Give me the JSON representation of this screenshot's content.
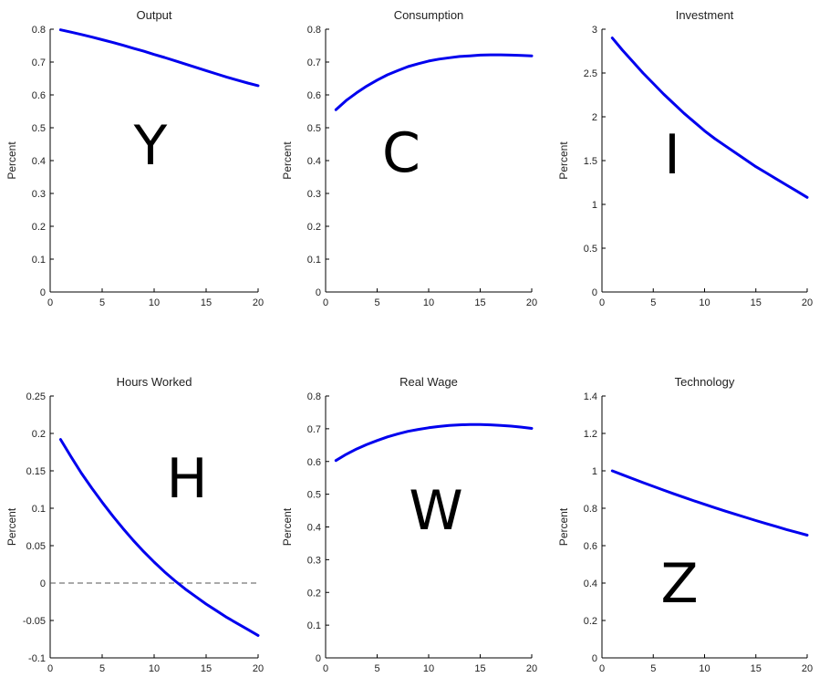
{
  "chart_data": [
    {
      "type": "line",
      "title": "Output",
      "ylabel": "Percent",
      "big_letter": "Y",
      "xlim": [
        0,
        20
      ],
      "ylim": [
        0,
        0.8
      ],
      "xticks": [
        "0",
        "5",
        "10",
        "15",
        "20"
      ],
      "yticks": [
        "0",
        "0.1",
        "0.2",
        "0.3",
        "0.4",
        "0.5",
        "0.6",
        "0.7",
        "0.8"
      ],
      "line_color": "#0000ee",
      "x": [
        1,
        2,
        3,
        4,
        5,
        6,
        7,
        8,
        9,
        10,
        11,
        12,
        13,
        14,
        15,
        16,
        17,
        18,
        19,
        20
      ],
      "y": [
        0.798,
        0.791,
        0.784,
        0.776,
        0.768,
        0.76,
        0.751,
        0.742,
        0.733,
        0.723,
        0.714,
        0.704,
        0.694,
        0.684,
        0.674,
        0.664,
        0.654,
        0.645,
        0.636,
        0.628
      ]
    },
    {
      "type": "line",
      "title": "Consumption",
      "ylabel": "Percent",
      "big_letter": "C",
      "xlim": [
        0,
        20
      ],
      "ylim": [
        0,
        0.8
      ],
      "xticks": [
        "0",
        "5",
        "10",
        "15",
        "20"
      ],
      "yticks": [
        "0",
        "0.1",
        "0.2",
        "0.3",
        "0.4",
        "0.5",
        "0.6",
        "0.7",
        "0.8"
      ],
      "line_color": "#0000ee",
      "x": [
        1,
        2,
        3,
        4,
        5,
        6,
        7,
        8,
        9,
        10,
        11,
        12,
        13,
        14,
        15,
        16,
        17,
        18,
        19,
        20
      ],
      "y": [
        0.555,
        0.583,
        0.606,
        0.627,
        0.645,
        0.661,
        0.674,
        0.686,
        0.695,
        0.703,
        0.709,
        0.713,
        0.717,
        0.719,
        0.721,
        0.722,
        0.722,
        0.721,
        0.72,
        0.719
      ]
    },
    {
      "type": "line",
      "title": "Investment",
      "ylabel": "Percent",
      "big_letter": "I",
      "xlim": [
        0,
        20
      ],
      "ylim": [
        0,
        3
      ],
      "xticks": [
        "0",
        "5",
        "10",
        "15",
        "20"
      ],
      "yticks": [
        "0",
        "0.5",
        "1",
        "1.5",
        "2",
        "2.5",
        "3"
      ],
      "line_color": "#0000ee",
      "x": [
        1,
        2,
        3,
        4,
        5,
        6,
        7,
        8,
        9,
        10,
        11,
        12,
        13,
        14,
        15,
        16,
        17,
        18,
        19,
        20
      ],
      "y": [
        2.9,
        2.76,
        2.63,
        2.5,
        2.38,
        2.26,
        2.15,
        2.04,
        1.94,
        1.84,
        1.75,
        1.67,
        1.59,
        1.51,
        1.43,
        1.36,
        1.29,
        1.22,
        1.15,
        1.08
      ]
    },
    {
      "type": "line",
      "title": "Hours Worked",
      "ylabel": "Percent",
      "big_letter": "H",
      "xlim": [
        0,
        20
      ],
      "ylim": [
        -0.1,
        0.25
      ],
      "xticks": [
        "0",
        "5",
        "10",
        "15",
        "20"
      ],
      "yticks": [
        "-0.1",
        "-0.05",
        "0",
        "0.05",
        "0.1",
        "0.15",
        "0.2",
        "0.25"
      ],
      "line_color": "#0000ee",
      "zero_line": true,
      "x": [
        1,
        2,
        3,
        4,
        5,
        6,
        7,
        8,
        9,
        10,
        11,
        12,
        13,
        14,
        15,
        16,
        17,
        18,
        19,
        20
      ],
      "y": [
        0.192,
        0.169,
        0.147,
        0.127,
        0.108,
        0.09,
        0.073,
        0.057,
        0.042,
        0.028,
        0.015,
        0.003,
        -0.008,
        -0.018,
        -0.028,
        -0.037,
        -0.046,
        -0.054,
        -0.062,
        -0.07
      ]
    },
    {
      "type": "line",
      "title": "Real Wage",
      "ylabel": "Percent",
      "big_letter": "W",
      "xlim": [
        0,
        20
      ],
      "ylim": [
        0,
        0.8
      ],
      "xticks": [
        "0",
        "5",
        "10",
        "15",
        "20"
      ],
      "yticks": [
        "0",
        "0.1",
        "0.2",
        "0.3",
        "0.4",
        "0.5",
        "0.6",
        "0.7",
        "0.8"
      ],
      "line_color": "#0000ee",
      "x": [
        1,
        2,
        3,
        4,
        5,
        6,
        7,
        8,
        9,
        10,
        11,
        12,
        13,
        14,
        15,
        16,
        17,
        18,
        19,
        20
      ],
      "y": [
        0.603,
        0.622,
        0.638,
        0.652,
        0.664,
        0.675,
        0.684,
        0.692,
        0.698,
        0.703,
        0.707,
        0.71,
        0.712,
        0.713,
        0.713,
        0.712,
        0.71,
        0.708,
        0.705,
        0.701
      ]
    },
    {
      "type": "line",
      "title": "Technology",
      "ylabel": "Percent",
      "big_letter": "Z",
      "xlim": [
        0,
        20
      ],
      "ylim": [
        0,
        1.4
      ],
      "xticks": [
        "0",
        "5",
        "10",
        "15",
        "20"
      ],
      "yticks": [
        "0",
        "0.2",
        "0.4",
        "0.6",
        "0.8",
        "1",
        "1.2",
        "1.4"
      ],
      "line_color": "#0000ee",
      "x": [
        1,
        2,
        3,
        4,
        5,
        6,
        7,
        8,
        9,
        10,
        11,
        12,
        13,
        14,
        15,
        16,
        17,
        18,
        19,
        20
      ],
      "y": [
        1.0,
        0.979,
        0.958,
        0.937,
        0.917,
        0.897,
        0.877,
        0.858,
        0.839,
        0.821,
        0.803,
        0.785,
        0.768,
        0.751,
        0.734,
        0.718,
        0.702,
        0.686,
        0.671,
        0.656
      ]
    }
  ]
}
